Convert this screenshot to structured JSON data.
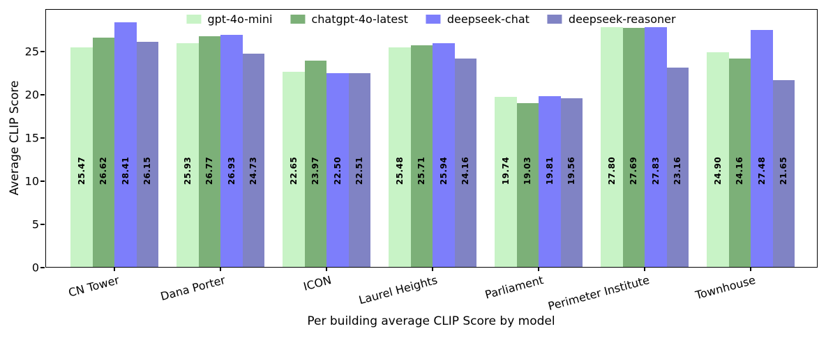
{
  "chart_data": {
    "type": "bar",
    "title": "",
    "xlabel": "Per building average CLIP Score by model",
    "ylabel": "Average CLIP Score",
    "ylim": [
      0,
      29.9
    ],
    "yticks": [
      0,
      5,
      10,
      15,
      20,
      25
    ],
    "grid": false,
    "legend_position": "upper center",
    "bar_label_format": "0.00",
    "categories": [
      "CN Tower",
      "Dana Porter",
      "ICON",
      "Laurel Heights",
      "Parliament",
      "Perimeter Institute",
      "Townhouse"
    ],
    "series": [
      {
        "name": "gpt-4o-mini",
        "color": "#c8f3c6",
        "values": [
          25.47,
          25.93,
          22.65,
          25.48,
          19.74,
          27.8,
          24.9
        ]
      },
      {
        "name": "chatgpt-4o-latest",
        "color": "#7cb078",
        "values": [
          26.62,
          26.77,
          23.97,
          25.71,
          19.03,
          27.69,
          24.16
        ]
      },
      {
        "name": "deepseek-chat",
        "color": "#7d7efb",
        "values": [
          28.41,
          26.93,
          22.5,
          25.94,
          19.81,
          27.83,
          27.48
        ]
      },
      {
        "name": "deepseek-reasoner",
        "color": "#8083c4",
        "values": [
          26.15,
          24.73,
          22.51,
          24.16,
          19.56,
          23.16,
          21.65
        ]
      }
    ],
    "colors": {
      "spine": "#000000",
      "background": "#ffffff",
      "bar_label_text": "#000000"
    }
  }
}
